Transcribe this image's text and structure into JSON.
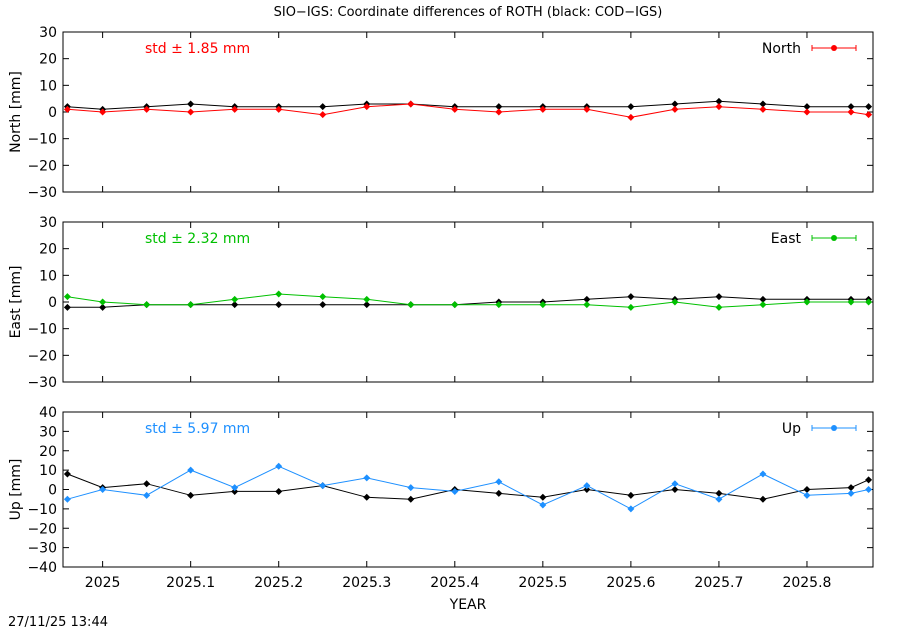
{
  "chart_title": "SIO−IGS: Coordinate differences of ROTH (black: COD−IGS)",
  "xlabel": "YEAR",
  "timestamp": "27/11/25 13:44",
  "colors": {
    "reference": "#000000",
    "north": "#ff0000",
    "east": "#00c000",
    "up": "#1e90ff"
  },
  "x_ticks": [
    "2025",
    "2025.1",
    "2025.2",
    "2025.3",
    "2025.4",
    "2025.5",
    "2025.6",
    "2025.7",
    "2025.8"
  ],
  "chart_data": [
    {
      "type": "line",
      "ylabel": "North [mm]",
      "ylim": [
        -30,
        30
      ],
      "yticks": [
        30,
        20,
        10,
        0,
        -10,
        -20,
        -30
      ],
      "xlim": [
        2024.955,
        2025.875
      ],
      "std_label": "std ± 1.85 mm",
      "legend": "North",
      "legend_position": "top-right",
      "series": [
        {
          "name": "COD−IGS",
          "color": "#000000",
          "x": [
            2024.96,
            2025.0,
            2025.05,
            2025.1,
            2025.15,
            2025.2,
            2025.25,
            2025.3,
            2025.35,
            2025.4,
            2025.45,
            2025.5,
            2025.55,
            2025.6,
            2025.65,
            2025.7,
            2025.75,
            2025.8,
            2025.85,
            2025.87
          ],
          "values": [
            2,
            1,
            2,
            3,
            2,
            2,
            2,
            3,
            3,
            2,
            2,
            2,
            2,
            2,
            3,
            4,
            3,
            2,
            2,
            2
          ]
        },
        {
          "name": "North",
          "color": "#ff0000",
          "x": [
            2024.96,
            2025.0,
            2025.05,
            2025.1,
            2025.15,
            2025.2,
            2025.25,
            2025.3,
            2025.35,
            2025.4,
            2025.45,
            2025.5,
            2025.55,
            2025.6,
            2025.65,
            2025.7,
            2025.75,
            2025.8,
            2025.85,
            2025.87
          ],
          "values": [
            1,
            0,
            1,
            0,
            1,
            1,
            -1,
            2,
            3,
            1,
            0,
            1,
            1,
            -2,
            1,
            2,
            1,
            0,
            0,
            -1
          ]
        }
      ]
    },
    {
      "type": "line",
      "ylabel": "East [mm]",
      "ylim": [
        -30,
        30
      ],
      "yticks": [
        30,
        20,
        10,
        0,
        -10,
        -20,
        -30
      ],
      "xlim": [
        2024.955,
        2025.875
      ],
      "std_label": "std ± 2.32 mm",
      "legend": "East",
      "legend_position": "top-right",
      "series": [
        {
          "name": "COD−IGS",
          "color": "#000000",
          "x": [
            2024.96,
            2025.0,
            2025.05,
            2025.1,
            2025.15,
            2025.2,
            2025.25,
            2025.3,
            2025.35,
            2025.4,
            2025.45,
            2025.5,
            2025.55,
            2025.6,
            2025.65,
            2025.7,
            2025.75,
            2025.8,
            2025.85,
            2025.87
          ],
          "values": [
            -2,
            -2,
            -1,
            -1,
            -1,
            -1,
            -1,
            -1,
            -1,
            -1,
            0,
            0,
            1,
            2,
            1,
            2,
            1,
            1,
            1,
            1
          ]
        },
        {
          "name": "East",
          "color": "#00c000",
          "x": [
            2024.96,
            2025.0,
            2025.05,
            2025.1,
            2025.15,
            2025.2,
            2025.25,
            2025.3,
            2025.35,
            2025.4,
            2025.45,
            2025.5,
            2025.55,
            2025.6,
            2025.65,
            2025.7,
            2025.75,
            2025.8,
            2025.85,
            2025.87
          ],
          "values": [
            2,
            0,
            -1,
            -1,
            1,
            3,
            2,
            1,
            -1,
            -1,
            -1,
            -1,
            -1,
            -2,
            0,
            -2,
            -1,
            0,
            0,
            0
          ]
        }
      ]
    },
    {
      "type": "line",
      "ylabel": "Up [mm]",
      "ylim": [
        -40,
        40
      ],
      "yticks": [
        40,
        30,
        20,
        10,
        0,
        -10,
        -20,
        -30,
        -40
      ],
      "xlim": [
        2024.955,
        2025.875
      ],
      "std_label": "std ± 5.97 mm",
      "legend": "Up",
      "legend_position": "top-right",
      "series": [
        {
          "name": "COD−IGS",
          "color": "#000000",
          "x": [
            2024.96,
            2025.0,
            2025.05,
            2025.1,
            2025.15,
            2025.2,
            2025.25,
            2025.3,
            2025.35,
            2025.4,
            2025.45,
            2025.5,
            2025.55,
            2025.6,
            2025.65,
            2025.7,
            2025.75,
            2025.8,
            2025.85,
            2025.87
          ],
          "values": [
            8,
            1,
            3,
            -3,
            -1,
            -1,
            2,
            -4,
            -5,
            0,
            -2,
            -4,
            0,
            -3,
            0,
            -2,
            -5,
            0,
            1,
            5
          ]
        },
        {
          "name": "Up",
          "color": "#1e90ff",
          "x": [
            2024.96,
            2025.0,
            2025.05,
            2025.1,
            2025.15,
            2025.2,
            2025.25,
            2025.3,
            2025.35,
            2025.4,
            2025.45,
            2025.5,
            2025.55,
            2025.6,
            2025.65,
            2025.7,
            2025.75,
            2025.8,
            2025.85,
            2025.87
          ],
          "values": [
            -5,
            0,
            -3,
            10,
            1,
            12,
            2,
            6,
            1,
            -1,
            4,
            -8,
            2,
            -10,
            3,
            -5,
            8,
            -3,
            -2,
            0
          ]
        }
      ]
    }
  ]
}
